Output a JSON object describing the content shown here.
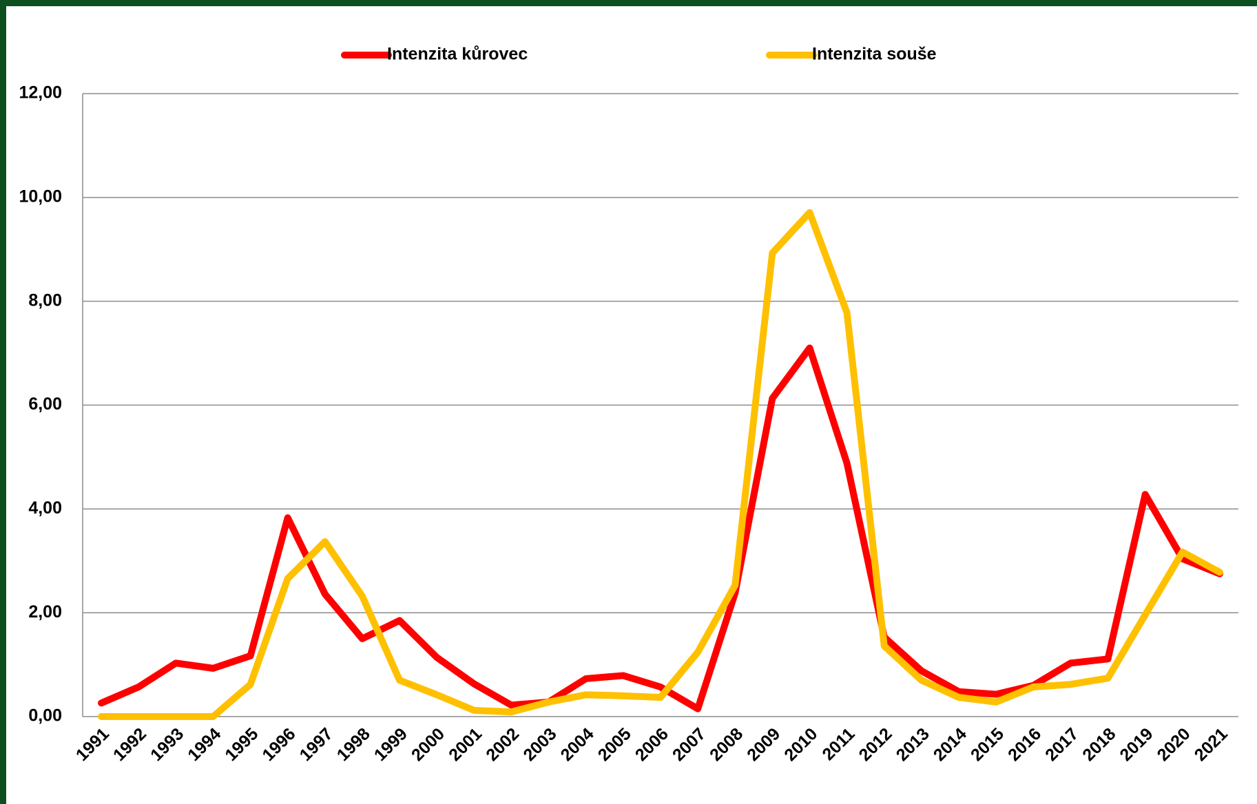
{
  "chart_data": {
    "type": "line",
    "categories": [
      "1991",
      "1992",
      "1993",
      "1994",
      "1995",
      "1996",
      "1997",
      "1998",
      "1999",
      "2000",
      "2001",
      "2002",
      "2003",
      "2004",
      "2005",
      "2006",
      "2007",
      "2008",
      "2009",
      "2010",
      "2011",
      "2012",
      "2013",
      "2014",
      "2015",
      "2016",
      "2017",
      "2018",
      "2019",
      "2020",
      "2021"
    ],
    "series": [
      {
        "name": "Intenzita kůrovec",
        "color": "#ff0000",
        "values": [
          0.26,
          0.57,
          1.03,
          0.93,
          1.17,
          3.83,
          2.36,
          1.5,
          1.85,
          1.14,
          0.63,
          0.22,
          0.28,
          0.73,
          0.79,
          0.57,
          0.15,
          2.38,
          6.13,
          7.1,
          4.88,
          1.53,
          0.88,
          0.48,
          0.43,
          0.6,
          1.03,
          1.11,
          4.28,
          3.04,
          2.75
        ]
      },
      {
        "name": "Intenzita souše",
        "color": "#ffc000",
        "values": [
          0,
          0,
          0,
          0,
          0.62,
          2.66,
          3.37,
          2.32,
          0.7,
          0.42,
          0.12,
          0.09,
          0.28,
          0.42,
          0.4,
          0.37,
          1.24,
          2.53,
          8.93,
          9.71,
          7.78,
          1.36,
          0.7,
          0.37,
          0.28,
          0.57,
          0.62,
          0.74,
          1.96,
          3.17,
          2.78
        ]
      }
    ],
    "ylim": [
      0,
      12
    ],
    "yticks": [
      {
        "value": 0,
        "label": "0,00"
      },
      {
        "value": 2,
        "label": "2,00"
      },
      {
        "value": 4,
        "label": "4,00"
      },
      {
        "value": 6,
        "label": "6,00"
      },
      {
        "value": 8,
        "label": "8,00"
      },
      {
        "value": 10,
        "label": "10,00"
      },
      {
        "value": 12,
        "label": "12,00"
      }
    ],
    "grid": true
  }
}
